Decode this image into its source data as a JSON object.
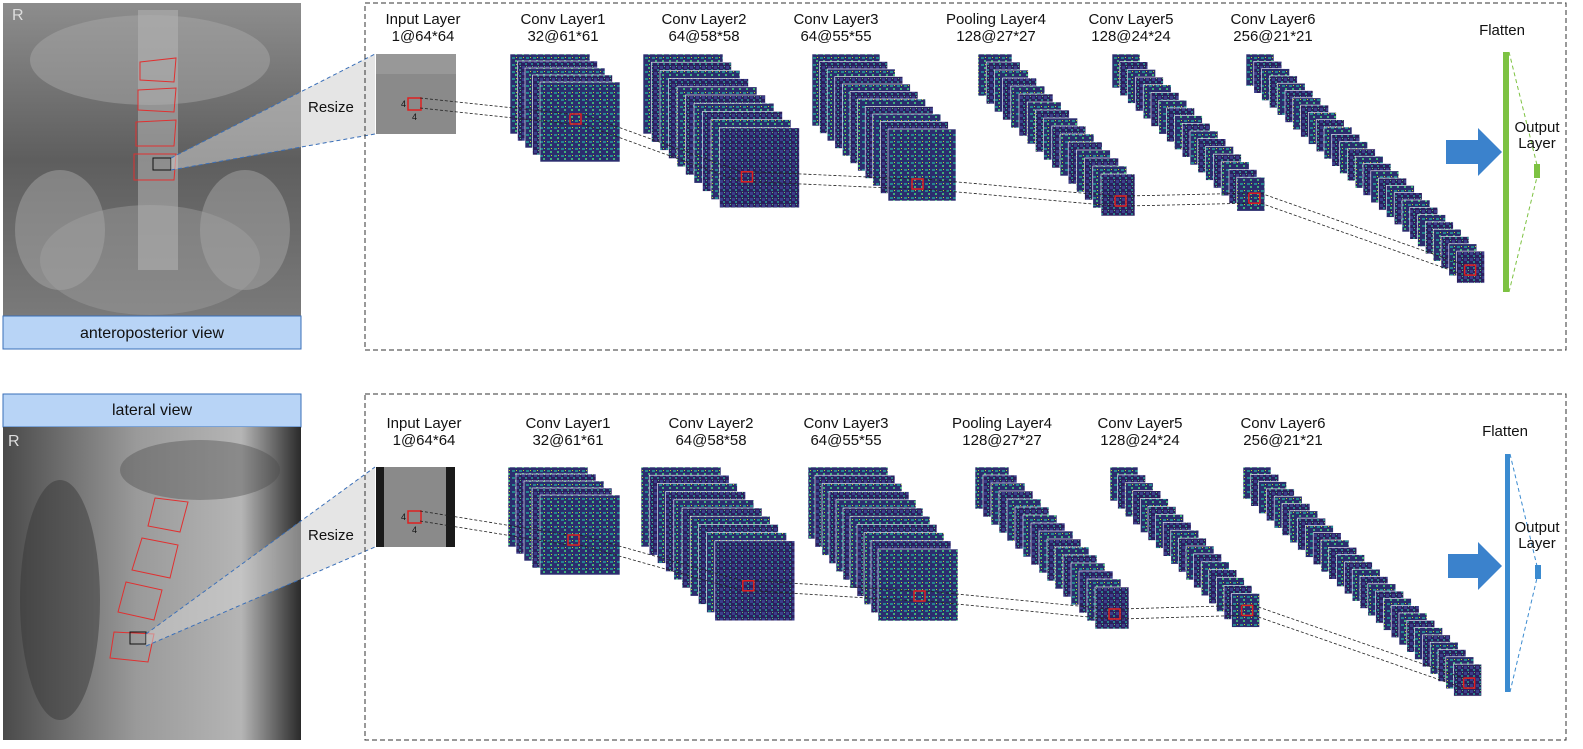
{
  "panels": [
    {
      "view_label": "anteroposterior view",
      "resize_label": "Resize",
      "corner_mark": "R",
      "layers": [
        {
          "name": "Input Layer",
          "size": "1@64*64"
        },
        {
          "name": "Conv Layer1",
          "size": "32@61*61"
        },
        {
          "name": "Conv Layer2",
          "size": "64@58*58"
        },
        {
          "name": "Conv Layer3",
          "size": "64@55*55"
        },
        {
          "name": "Pooling Layer4",
          "size": "128@27*27"
        },
        {
          "name": "Conv Layer5",
          "size": "128@24*24"
        },
        {
          "name": "Conv Layer6",
          "size": "256@21*21"
        }
      ],
      "kernel_label": "4",
      "flatten_label": "Flatten",
      "output_label_line1": "Output",
      "output_label_line2": "Layer",
      "accent_color": "#7dc242",
      "arrow_color": "#3b82cc"
    },
    {
      "view_label": "lateral view",
      "resize_label": "Resize",
      "corner_mark": "R",
      "layers": [
        {
          "name": "Input Layer",
          "size": "1@64*64"
        },
        {
          "name": "Conv Layer1",
          "size": "32@61*61"
        },
        {
          "name": "Conv Layer2",
          "size": "64@58*58"
        },
        {
          "name": "Conv Layer3",
          "size": "64@55*55"
        },
        {
          "name": "Pooling Layer4",
          "size": "128@27*27"
        },
        {
          "name": "Conv Layer5",
          "size": "128@24*24"
        },
        {
          "name": "Conv Layer6",
          "size": "256@21*21"
        }
      ],
      "kernel_label": "4",
      "flatten_label": "Flatten",
      "output_label_line1": "Output",
      "output_label_line2": "Layer",
      "accent_color": "#3b8bd0",
      "arrow_color": "#3b82cc"
    }
  ]
}
